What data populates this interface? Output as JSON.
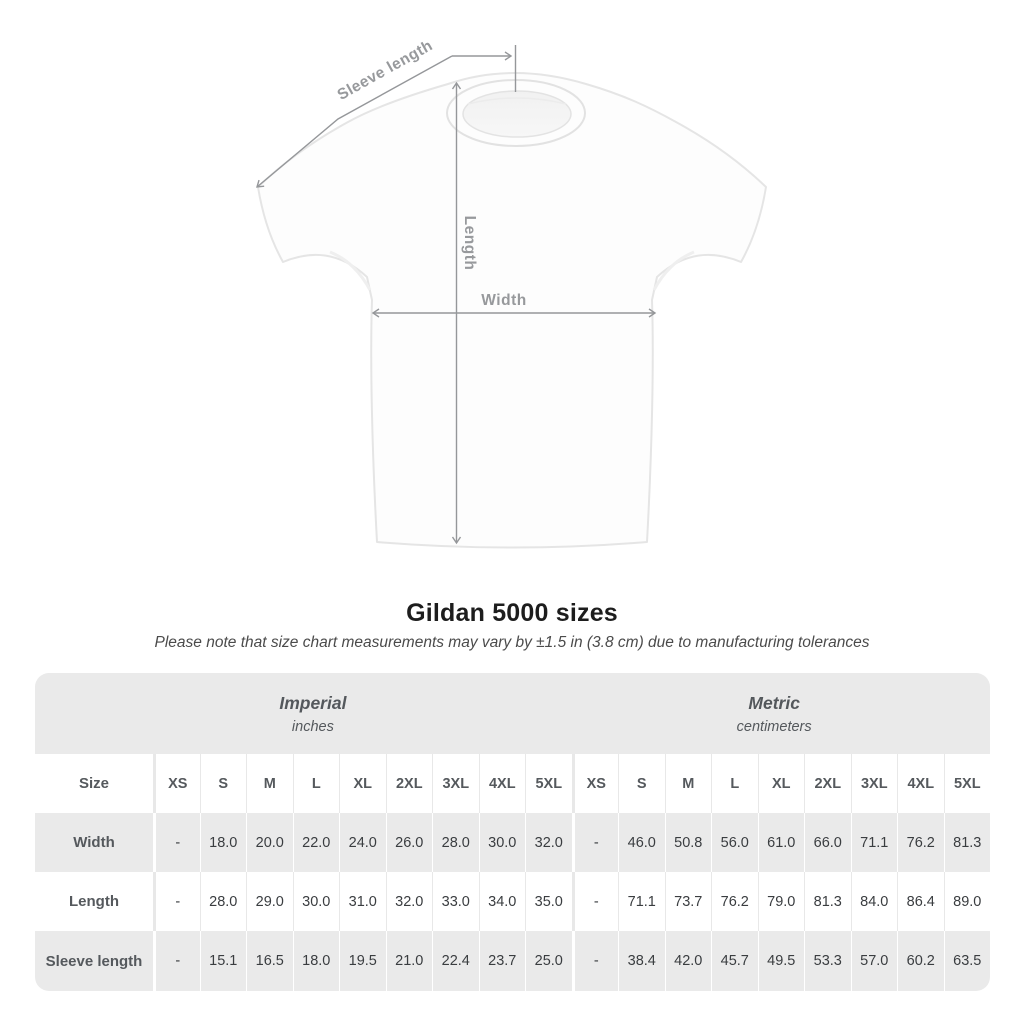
{
  "diagram": {
    "sleeve_label": "Sleeve length",
    "length_label": "Length",
    "width_label": "Width"
  },
  "chart_data": {
    "type": "table",
    "title": "Gildan 5000 sizes",
    "note": "Please note that size chart measurements may vary by ±1.5 in (3.8 cm) due to manufacturing tolerances",
    "size_column_label": "Size",
    "columns": [
      "XS",
      "S",
      "M",
      "L",
      "XL",
      "2XL",
      "3XL",
      "4XL",
      "5XL"
    ],
    "sections": [
      {
        "name": "Imperial",
        "unit": "inches"
      },
      {
        "name": "Metric",
        "unit": "centimeters"
      }
    ],
    "rows": [
      {
        "label": "Width",
        "imperial": [
          "-",
          "18.0",
          "20.0",
          "22.0",
          "24.0",
          "26.0",
          "28.0",
          "30.0",
          "32.0"
        ],
        "metric": [
          "-",
          "46.0",
          "50.8",
          "56.0",
          "61.0",
          "66.0",
          "71.1",
          "76.2",
          "81.3"
        ]
      },
      {
        "label": "Length",
        "imperial": [
          "-",
          "28.0",
          "29.0",
          "30.0",
          "31.0",
          "32.0",
          "33.0",
          "34.0",
          "35.0"
        ],
        "metric": [
          "-",
          "71.1",
          "73.7",
          "76.2",
          "79.0",
          "81.3",
          "84.0",
          "86.4",
          "89.0"
        ]
      },
      {
        "label": "Sleeve length",
        "imperial": [
          "-",
          "15.1",
          "16.5",
          "18.0",
          "19.5",
          "21.0",
          "22.4",
          "23.7",
          "25.0"
        ],
        "metric": [
          "-",
          "38.4",
          "42.0",
          "45.7",
          "49.5",
          "53.3",
          "57.0",
          "60.2",
          "63.5"
        ]
      }
    ]
  },
  "colors": {
    "measure_line": "#95979a",
    "band_gray": "#eaeaea",
    "shirt_outline": "#e5e5e5",
    "title_text": "#1d1d1d"
  }
}
